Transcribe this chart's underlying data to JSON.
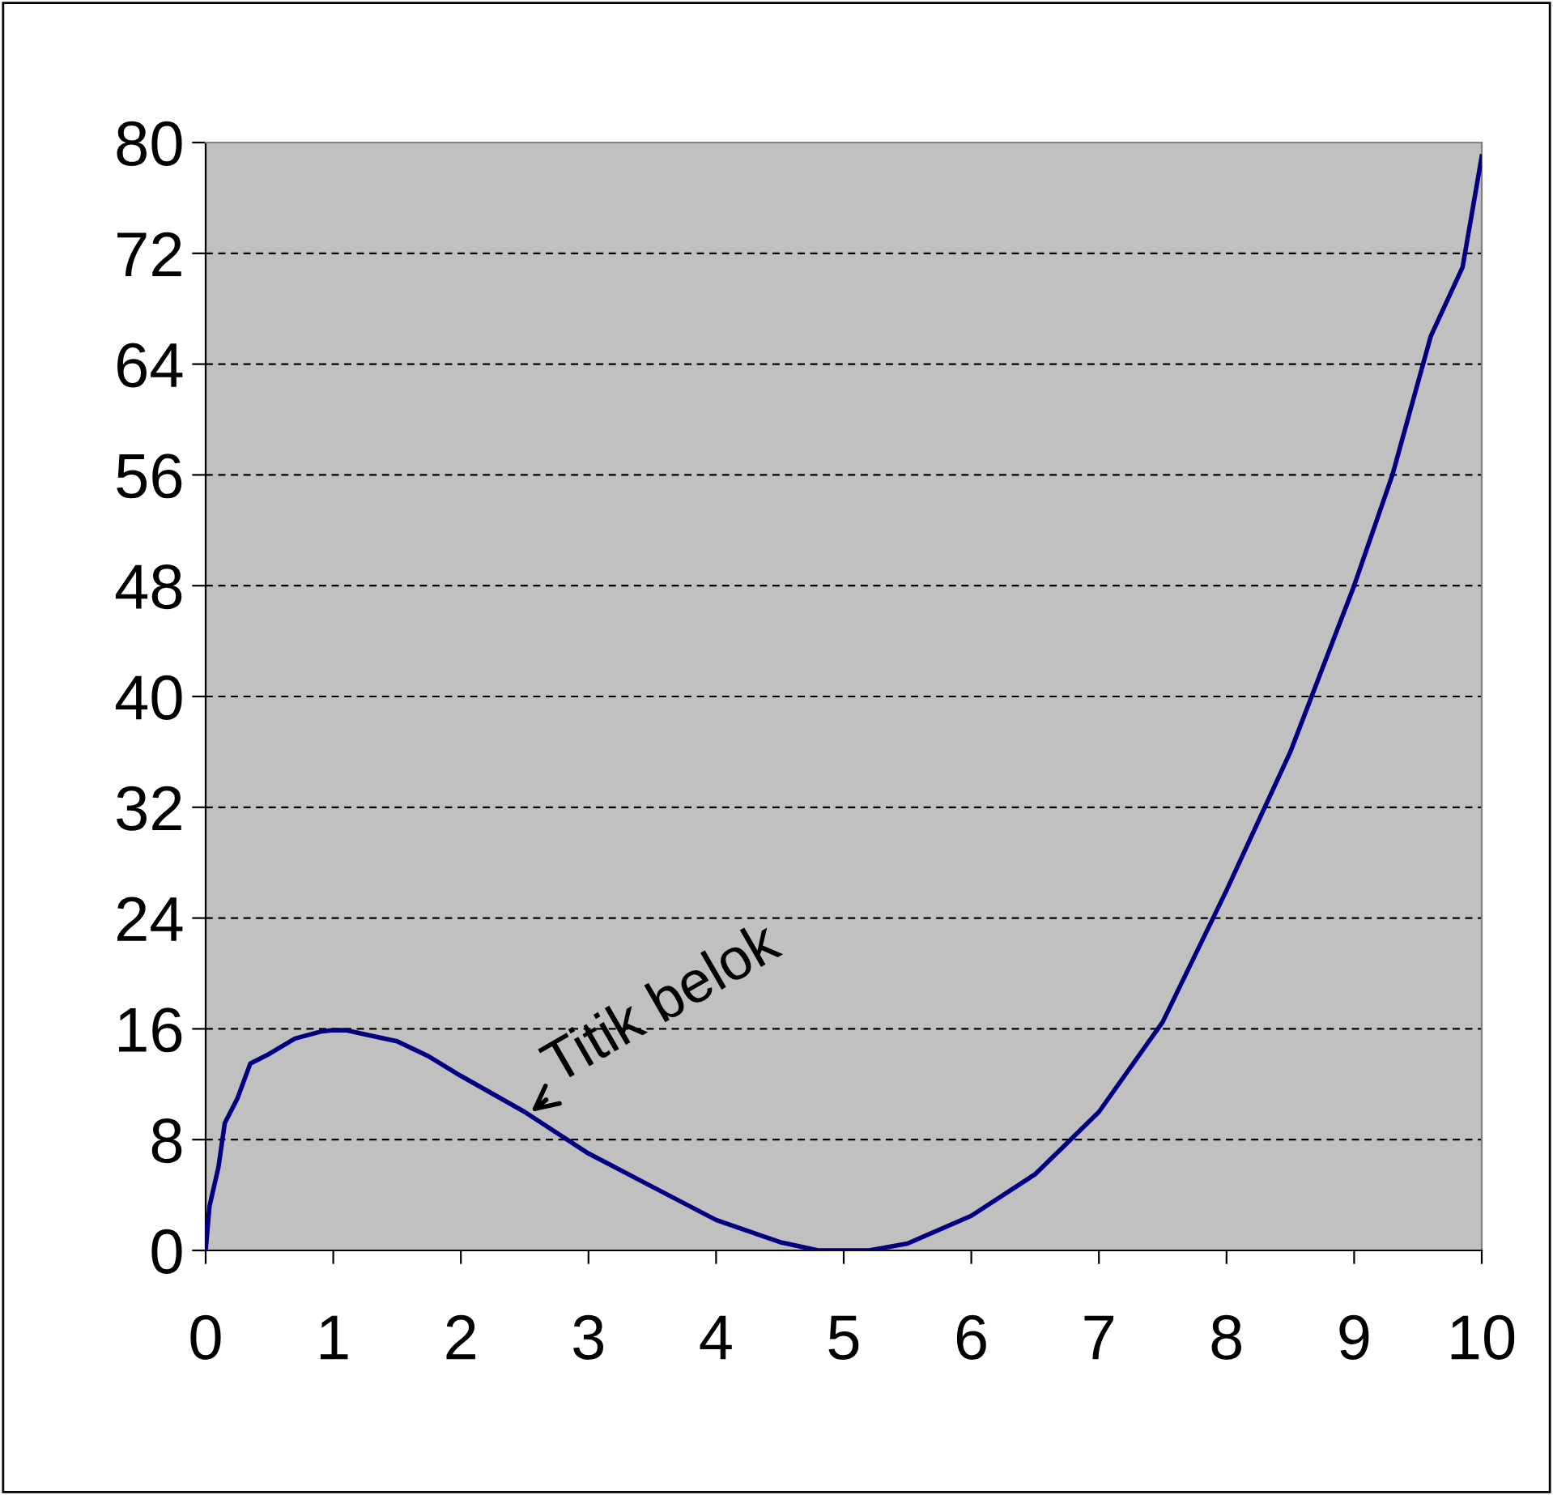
{
  "chart_data": {
    "type": "line",
    "x": [
      0,
      0.03,
      0.1,
      0.15,
      0.25,
      0.35,
      0.5,
      0.7,
      0.9,
      1.0,
      1.1,
      1.3,
      1.5,
      1.75,
      2,
      2.5,
      3,
      3.5,
      4,
      4.5,
      4.8,
      5.2,
      5.5,
      6,
      6.5,
      7,
      7.5,
      8,
      8.5,
      9,
      9.3,
      9.6,
      9.85,
      10
    ],
    "series": [
      {
        "color": "#000080",
        "values": [
          0,
          3.2,
          6,
          9.2,
          11,
          13.5,
          14.2,
          15.3,
          15.8,
          15.9,
          15.9,
          15.5,
          15.1,
          14,
          12.6,
          10,
          7,
          4.6,
          2.2,
          0.6,
          0,
          0,
          0.5,
          2.5,
          5.5,
          10,
          16.5,
          26,
          36,
          48,
          56,
          66,
          71,
          79
        ]
      }
    ],
    "xlim": [
      0,
      10
    ],
    "xticks": [
      0,
      1,
      2,
      3,
      4,
      5,
      6,
      7,
      8,
      9,
      10
    ],
    "ylim": [
      0,
      80
    ],
    "yticks": [
      0,
      8,
      16,
      24,
      32,
      40,
      48,
      56,
      64,
      72,
      80
    ],
    "grid": "y",
    "marker": "none",
    "line_style": "solid",
    "annotations": [
      {
        "text": "Titik belok",
        "x": 2.55,
        "y": 10
      }
    ]
  }
}
